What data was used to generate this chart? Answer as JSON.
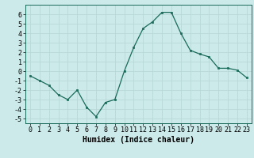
{
  "x": [
    0,
    1,
    2,
    3,
    4,
    5,
    6,
    7,
    8,
    9,
    10,
    11,
    12,
    13,
    14,
    15,
    16,
    17,
    18,
    19,
    20,
    21,
    22,
    23
  ],
  "y": [
    -0.5,
    -1.0,
    -1.5,
    -2.5,
    -3.0,
    -2.0,
    -3.8,
    -4.8,
    -3.3,
    -3.0,
    0.0,
    2.5,
    4.5,
    5.2,
    6.2,
    6.2,
    4.0,
    2.2,
    1.8,
    1.5,
    0.3,
    0.3,
    0.1,
    -0.7
  ],
  "xlabel": "Humidex (Indice chaleur)",
  "ylim": [
    -5.5,
    7.0
  ],
  "xlim": [
    -0.5,
    23.5
  ],
  "yticks": [
    -5,
    -4,
    -3,
    -2,
    -1,
    0,
    1,
    2,
    3,
    4,
    5,
    6
  ],
  "xticks": [
    0,
    1,
    2,
    3,
    4,
    5,
    6,
    7,
    8,
    9,
    10,
    11,
    12,
    13,
    14,
    15,
    16,
    17,
    18,
    19,
    20,
    21,
    22,
    23
  ],
  "line_color": "#1a6b5a",
  "marker_color": "#1a6b5a",
  "bg_color": "#cceaea",
  "grid_color": "#b8d8d8",
  "xlabel_fontsize": 7,
  "tick_fontsize": 6,
  "linewidth": 0.9,
  "markersize": 2.0
}
